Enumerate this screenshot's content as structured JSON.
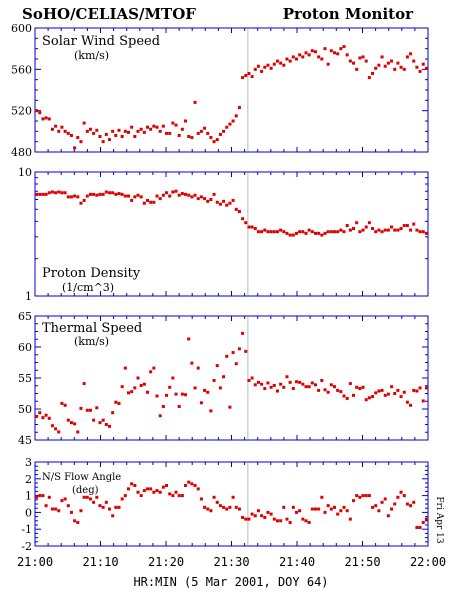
{
  "header": {
    "left_title": "SoHO/CELIAS/MTOF",
    "right_title": "Proton Monitor"
  },
  "side_label": "Fri Apr 13",
  "colors": {
    "axis": "#0000cc",
    "points": "#dd0000",
    "event_line": "#bbbbbb",
    "text": "#000000",
    "background": "#ffffff"
  },
  "chart_data": [
    {
      "type": "scatter",
      "title": "Solar Wind Speed",
      "unit": "(km/s)",
      "xlabel": "",
      "ylabel": "",
      "xlim": [
        0,
        60
      ],
      "ylim": [
        480,
        600
      ],
      "yticks": [
        480,
        520,
        560,
        600
      ],
      "grid": false,
      "y": [
        520,
        518,
        512,
        513,
        512,
        502,
        505,
        500,
        504,
        500,
        498,
        496,
        484,
        494,
        490,
        508,
        500,
        502,
        498,
        501,
        495,
        490,
        497,
        492,
        500,
        496,
        501,
        495,
        500,
        499,
        504,
        495,
        500,
        502,
        499,
        504,
        502,
        505,
        504,
        500,
        505,
        498,
        498,
        508,
        506,
        496,
        502,
        510,
        495,
        494,
        528,
        498,
        500,
        503,
        498,
        494,
        490,
        492,
        497,
        500,
        504,
        507,
        510,
        515,
        523,
        552,
        554,
        556,
        553,
        560,
        563,
        558,
        562,
        564,
        561,
        565,
        568,
        566,
        564,
        570,
        568,
        572,
        570,
        574,
        572,
        576,
        574,
        578,
        577,
        572,
        570,
        580,
        565,
        578,
        576,
        575,
        580,
        582,
        574,
        568,
        566,
        560,
        571,
        572,
        568,
        552,
        556,
        561,
        564,
        572,
        563,
        566,
        568,
        560,
        566,
        562,
        560,
        572,
        575,
        568,
        562,
        558,
        565,
        561
      ],
      "event_line_x": 32.5
    },
    {
      "type": "scatter",
      "title": "Proton Density",
      "unit": "(1/cm^3)",
      "xlabel": "",
      "ylabel": "",
      "xlim": [
        0,
        60
      ],
      "ylim": [
        1,
        10
      ],
      "yscale": "log",
      "yticks": [
        1,
        10
      ],
      "grid": false,
      "y": [
        6.6,
        6.6,
        6.6,
        6.6,
        6.8,
        6.9,
        6.8,
        6.9,
        6.8,
        6.8,
        6.3,
        6.3,
        6.4,
        6.3,
        5.6,
        5.9,
        6.4,
        6.6,
        6.6,
        6.5,
        6.6,
        6.6,
        6.9,
        6.8,
        6.8,
        6.6,
        6.7,
        6.6,
        6.4,
        6.4,
        5.9,
        6.3,
        6.5,
        6.3,
        5.6,
        5.9,
        5.7,
        5.7,
        6.4,
        6.1,
        6.5,
        6.8,
        6.4,
        6.9,
        7.0,
        6.5,
        6.7,
        6.6,
        6.5,
        6.3,
        6.5,
        6.1,
        6.3,
        6.1,
        5.8,
        6.0,
        6.6,
        5.7,
        5.5,
        5.8,
        5.4,
        5.6,
        5.9,
        5.0,
        4.8,
        4.2,
        3.9,
        3.6,
        3.6,
        3.5,
        3.3,
        3.3,
        3.4,
        3.3,
        3.3,
        3.3,
        3.3,
        3.4,
        3.3,
        3.2,
        3.1,
        3.1,
        3.2,
        3.3,
        3.3,
        3.2,
        3.4,
        3.3,
        3.2,
        3.2,
        3.1,
        3.2,
        3.3,
        3.3,
        3.3,
        3.3,
        3.4,
        3.3,
        3.7,
        3.4,
        3.5,
        3.9,
        3.3,
        3.4,
        3.6,
        3.9,
        3.5,
        3.3,
        3.4,
        3.3,
        3.4,
        3.4,
        3.6,
        3.4,
        3.4,
        3.5,
        3.7,
        3.7,
        3.4,
        3.8,
        3.4,
        3.3,
        3.3,
        3.2
      ],
      "event_line_x": 32.5
    },
    {
      "type": "scatter",
      "title": "Thermal Speed",
      "unit": "(km/s)",
      "xlabel": "",
      "ylabel": "",
      "xlim": [
        0,
        60
      ],
      "ylim": [
        45,
        65
      ],
      "yticks": [
        45,
        50,
        55,
        60,
        65
      ],
      "grid": false,
      "y": [
        48.8,
        49.4,
        48.6,
        49.0,
        48.5,
        47.3,
        46.8,
        46.3,
        50.9,
        50.6,
        48.2,
        47.8,
        47.6,
        46.3,
        50.1,
        54.1,
        49.8,
        49.8,
        48.2,
        50.2,
        47.8,
        48.2,
        47.5,
        47.2,
        49.4,
        51.1,
        50.9,
        53.6,
        56.6,
        52.6,
        52.8,
        53.4,
        55.0,
        53.8,
        54.0,
        52.7,
        56.0,
        56.6,
        52.1,
        48.9,
        50.4,
        52.2,
        53.5,
        55.0,
        52.4,
        50.4,
        52.4,
        52.3,
        61.3,
        57.4,
        53.4,
        56.6,
        51.0,
        53.0,
        52.7,
        49.7,
        54.6,
        57.0,
        53.4,
        55.2,
        58.5,
        50.3,
        59.1,
        57.3,
        59.7,
        62.2,
        59.3,
        54.6,
        55.0,
        53.9,
        54.3,
        54.0,
        53.3,
        54.2,
        53.5,
        53.8,
        52.9,
        54.0,
        53.5,
        55.2,
        54.3,
        53.3,
        54.4,
        54.3,
        54.0,
        53.6,
        53.6,
        54.2,
        53.9,
        53.0,
        54.6,
        53.1,
        52.7,
        53.9,
        53.6,
        53.0,
        52.8,
        52.1,
        51.7,
        54.1,
        52.2,
        53.5,
        53.3,
        53.5,
        51.5,
        51.8,
        52.0,
        52.6,
        52.9,
        53.0,
        52.2,
        52.4,
        53.6,
        52.5,
        53.0,
        52.0,
        52.7,
        51.1,
        50.6,
        53.0,
        52.9,
        53.4,
        51.3,
        53.4
      ],
      "event_line_x": 32.5
    },
    {
      "type": "scatter",
      "title": "N/S Flow Angle",
      "unit": "(deg)",
      "xlabel": "HR:MIN (5 Mar 2001, DOY 64)",
      "ylabel": "",
      "xlim": [
        0,
        60
      ],
      "ylim": [
        -2,
        3
      ],
      "yticks": [
        -2,
        -1,
        0,
        1,
        2,
        3
      ],
      "xticks": [
        0,
        10,
        20,
        30,
        40,
        50,
        60
      ],
      "xticklabels": [
        "21:00",
        "21:10",
        "21:20",
        "21:30",
        "21:40",
        "21:50",
        "22:00"
      ],
      "grid": false,
      "y": [
        0.9,
        1.0,
        1.0,
        0.4,
        0.9,
        0.2,
        0.2,
        0.1,
        0.7,
        0.8,
        0.4,
        0.0,
        -0.5,
        -0.6,
        0.1,
        0.9,
        0.9,
        0.8,
        0.6,
        0.9,
        0.4,
        0.3,
        0.6,
        0.2,
        -0.2,
        0.3,
        0.3,
        0.8,
        1.0,
        1.4,
        1.7,
        1.6,
        1.2,
        1.0,
        1.3,
        1.4,
        1.4,
        1.2,
        1.3,
        1.2,
        1.5,
        1.6,
        1.1,
        1.0,
        1.2,
        1.0,
        1.0,
        1.6,
        1.8,
        1.7,
        1.6,
        1.4,
        0.8,
        0.3,
        0.2,
        0.1,
        0.9,
        0.6,
        0.4,
        0.3,
        0.2,
        0.3,
        0.9,
        0.3,
        0.2,
        -0.3,
        -0.4,
        -0.4,
        -0.1,
        -0.2,
        0.1,
        -0.2,
        -0.3,
        0.0,
        -0.1,
        -0.4,
        -0.5,
        -0.5,
        0.3,
        -0.4,
        -0.6,
        0.3,
        0.0,
        0.1,
        -0.4,
        -0.5,
        -0.6,
        0.2,
        0.2,
        0.2,
        0.9,
        0.0,
        0.4,
        0.2,
        0.3,
        -0.1,
        0.1,
        0.3,
        0.1,
        -0.4,
        0.7,
        1.0,
        0.9,
        1.0,
        1.0,
        1.0,
        0.3,
        0.4,
        0.1,
        0.6,
        0.8,
        -0.2,
        0.2,
        0.5,
        0.9,
        1.2,
        1.0,
        0.5,
        0.4,
        0.6,
        -0.9,
        -0.9,
        -0.6,
        -0.4
      ],
      "event_line_x": 32.5
    }
  ]
}
